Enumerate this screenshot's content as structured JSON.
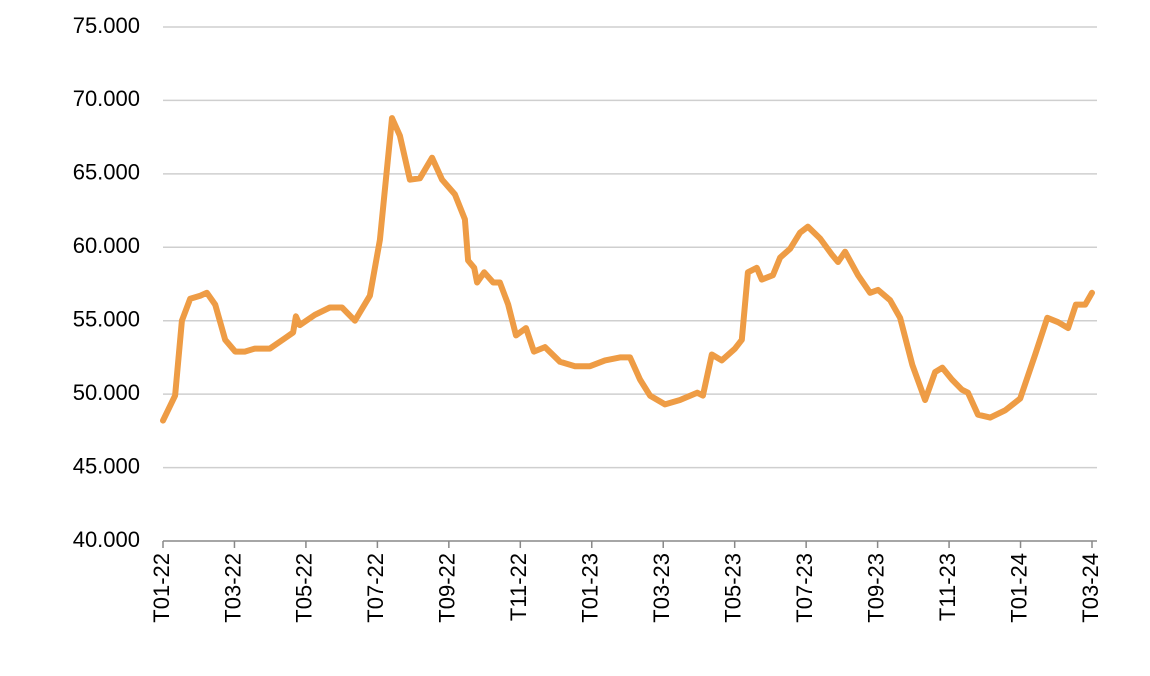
{
  "chart_data": {
    "type": "line",
    "color": "#ee9c45",
    "grid": true,
    "x": [
      0,
      0.34,
      0.53,
      0.76,
      1.04,
      1.23,
      1.46,
      1.74,
      2.02,
      2.29,
      2.57,
      2.99,
      3.41,
      3.64,
      3.72,
      3.83,
      4.25,
      4.67,
      5.01,
      5.37,
      5.79,
      6.07,
      6.41,
      6.63,
      6.91,
      7.19,
      7.53,
      7.81,
      8.17,
      8.45,
      8.54,
      8.71,
      8.79,
      8.99,
      9.24,
      9.43,
      9.66,
      9.88,
      10.16,
      10.38,
      10.69,
      11.11,
      11.53,
      11.95,
      12.37,
      12.79,
      13.07,
      13.35,
      13.63,
      14.05,
      14.47,
      14.95,
      15.11,
      15.36,
      15.64,
      16.01,
      16.2,
      16.37,
      16.62,
      16.76,
      17.07,
      17.27,
      17.55,
      17.83,
      18.05,
      18.39,
      18.72,
      18.89,
      19.09,
      19.45,
      19.79,
      20.01,
      20.35,
      20.63,
      20.97,
      21.33,
      21.61,
      21.81,
      22.08,
      22.36,
      22.53,
      22.81,
      23.15,
      23.57,
      23.99,
      24.41,
      24.75,
      25.05,
      25.33,
      25.55,
      25.81,
      26.0
    ],
    "values": [
      48200,
      49900,
      55000,
      56500,
      56700,
      56900,
      56100,
      53700,
      52900,
      52900,
      53100,
      53100,
      53800,
      54200,
      55300,
      54700,
      55400,
      55900,
      55900,
      55000,
      56700,
      60500,
      68800,
      67600,
      64600,
      64700,
      66100,
      64600,
      63600,
      61900,
      59100,
      58600,
      57600,
      58300,
      57600,
      57600,
      56100,
      54000,
      54500,
      52900,
      53200,
      52200,
      51900,
      51900,
      52300,
      52500,
      52500,
      51000,
      49900,
      49300,
      49600,
      50100,
      49900,
      52700,
      52300,
      53100,
      53700,
      58300,
      58600,
      57800,
      58100,
      59300,
      59900,
      61000,
      61400,
      60600,
      59500,
      59000,
      59700,
      58100,
      56900,
      57100,
      56400,
      55200,
      52000,
      49600,
      51500,
      51800,
      51000,
      50300,
      50100,
      48600,
      48400,
      48900,
      49700,
      52700,
      55200,
      54900,
      54500,
      56100,
      56100,
      56900
    ],
    "xlim": [
      0,
      26.14
    ],
    "xticks": [
      {
        "value": 0,
        "label": "T01-22"
      },
      {
        "value": 2,
        "label": "T03-22"
      },
      {
        "value": 4,
        "label": "T05-22"
      },
      {
        "value": 6,
        "label": "T07-22"
      },
      {
        "value": 8,
        "label": "T09-22"
      },
      {
        "value": 10,
        "label": "T11-22"
      },
      {
        "value": 12,
        "label": "T01-23"
      },
      {
        "value": 14,
        "label": "T03-23"
      },
      {
        "value": 16,
        "label": "T05-23"
      },
      {
        "value": 18,
        "label": "T07-23"
      },
      {
        "value": 20,
        "label": "T09-23"
      },
      {
        "value": 22,
        "label": "T11-23"
      },
      {
        "value": 24,
        "label": "T01-24"
      },
      {
        "value": 26,
        "label": "T03-24"
      }
    ],
    "ylim": [
      40000,
      75000
    ],
    "yticks": [
      {
        "value": 40000,
        "label": "40.000"
      },
      {
        "value": 45000,
        "label": "45.000"
      },
      {
        "value": 50000,
        "label": "50.000"
      },
      {
        "value": 55000,
        "label": "55.000"
      },
      {
        "value": 60000,
        "label": "60.000"
      },
      {
        "value": 65000,
        "label": "65.000"
      },
      {
        "value": 70000,
        "label": "70.000"
      },
      {
        "value": 75000,
        "label": "75.000"
      }
    ]
  }
}
